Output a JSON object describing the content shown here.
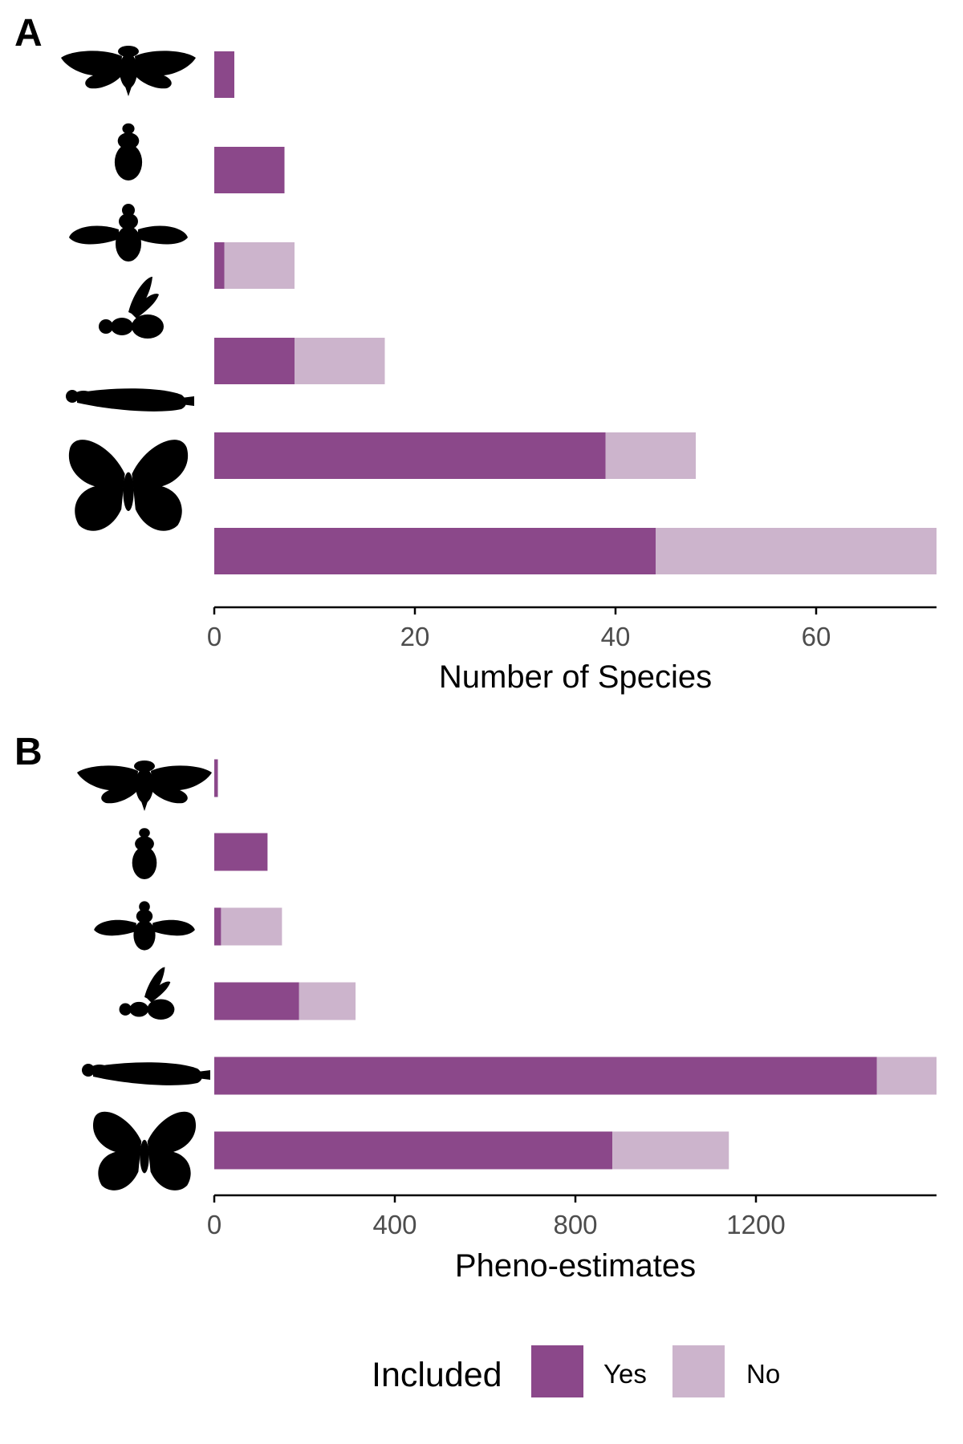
{
  "colors": {
    "yes": "#8b488a",
    "no": "#ccb4cc"
  },
  "legend": {
    "title": "Included",
    "entries": [
      {
        "label": "Yes",
        "color": "#8b488a"
      },
      {
        "label": "No",
        "color": "#ccb4cc"
      }
    ]
  },
  "icons": [
    "cicada-icon",
    "beetle-icon",
    "fly-icon",
    "wasp-icon",
    "damselfly-icon",
    "butterfly-icon"
  ],
  "chart_data": [
    {
      "type": "bar",
      "orientation": "horizontal",
      "stacked": true,
      "panel": "A",
      "xlabel": "Number of Species",
      "ylabel": "",
      "xlim": [
        0,
        72
      ],
      "xticks": [
        0,
        20,
        40,
        60
      ],
      "categories": [
        "cicada-icon",
        "beetle-icon",
        "fly-icon",
        "wasp-icon",
        "damselfly-icon",
        "butterfly-icon"
      ],
      "series": [
        {
          "name": "Yes",
          "values": [
            2,
            7,
            1,
            8,
            39,
            44
          ]
        },
        {
          "name": "No",
          "values": [
            0,
            0,
            7,
            9,
            9,
            28
          ]
        }
      ]
    },
    {
      "type": "bar",
      "orientation": "horizontal",
      "stacked": true,
      "panel": "B",
      "xlabel": "Pheno-estimates",
      "ylabel": "",
      "xlim": [
        0,
        1600
      ],
      "xticks": [
        0,
        400,
        800,
        1200
      ],
      "categories": [
        "cicada-icon",
        "beetle-icon",
        "fly-icon",
        "wasp-icon",
        "damselfly-icon",
        "butterfly-icon"
      ],
      "series": [
        {
          "name": "Yes",
          "values": [
            8,
            118,
            15,
            188,
            1468,
            882
          ]
        },
        {
          "name": "No",
          "values": [
            0,
            0,
            135,
            125,
            132,
            258
          ]
        }
      ]
    }
  ]
}
